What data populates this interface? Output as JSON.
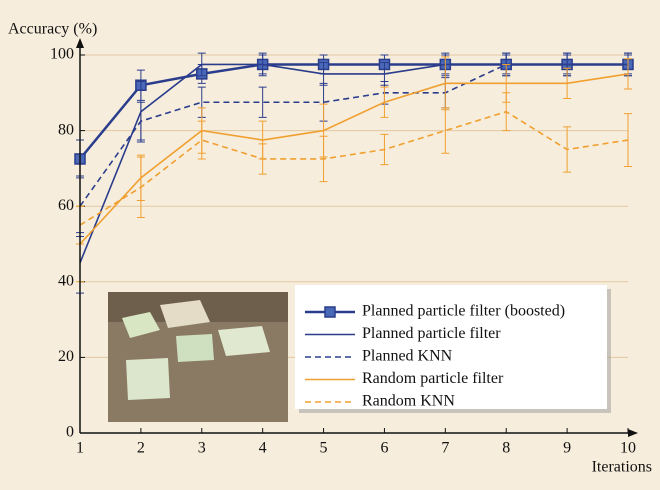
{
  "chart_data": {
    "type": "line",
    "y_label": "Accuracy (%)",
    "x_label": "Iterations",
    "x": [
      1,
      2,
      3,
      4,
      5,
      6,
      7,
      8,
      9,
      10
    ],
    "xlim": [
      1,
      10
    ],
    "xticks": [
      1,
      2,
      3,
      4,
      5,
      6,
      7,
      8,
      9,
      10
    ],
    "ylim": [
      0,
      100
    ],
    "yticks": [
      0,
      20,
      40,
      60,
      80,
      100
    ],
    "grid": true,
    "legend": "lower right",
    "series": [
      {
        "name": "Planned particle filter (boosted)",
        "color": "#2a3d8c",
        "style": "solid",
        "marker": "square",
        "values": [
          72.5,
          92,
          95,
          97.5,
          97.5,
          97.5,
          97.5,
          97.5,
          97.5,
          97.5
        ],
        "errors": [
          5,
          4,
          2.5,
          2.5,
          2.5,
          2.5,
          2.5,
          2.5,
          2.5,
          2.5
        ]
      },
      {
        "name": "Planned particle filter",
        "color": "#2a3d8c",
        "style": "solid",
        "values": [
          45,
          85,
          97.5,
          97.5,
          95,
          95,
          97.5,
          97.5,
          97.5,
          97.5
        ],
        "errors": [
          8,
          8,
          3,
          3,
          3,
          3,
          3,
          3,
          3,
          3
        ]
      },
      {
        "name": "Planned KNN",
        "color": "#2a3d8c",
        "style": "dashed",
        "values": [
          60,
          82.5,
          87.5,
          87.5,
          87.5,
          90,
          90,
          97.5,
          97.5,
          97.5
        ],
        "errors": [
          8,
          5,
          4,
          4,
          5,
          3,
          4,
          3,
          3,
          3
        ]
      },
      {
        "name": "Random particle filter",
        "color": "#f0a030",
        "style": "solid",
        "values": [
          50,
          67.5,
          80,
          77.5,
          80,
          87.5,
          92.5,
          92.5,
          92.5,
          95
        ],
        "errors": [
          10,
          6,
          6,
          5,
          7,
          4,
          7,
          5,
          4,
          4
        ]
      },
      {
        "name": "Random KNN",
        "color": "#f0a030",
        "style": "dashed",
        "values": [
          55,
          65,
          77.5,
          72.5,
          72.5,
          75,
          80,
          85,
          75,
          77.5
        ],
        "errors": [
          5,
          8,
          5,
          4,
          6,
          4,
          6,
          5,
          6,
          7
        ]
      }
    ]
  }
}
